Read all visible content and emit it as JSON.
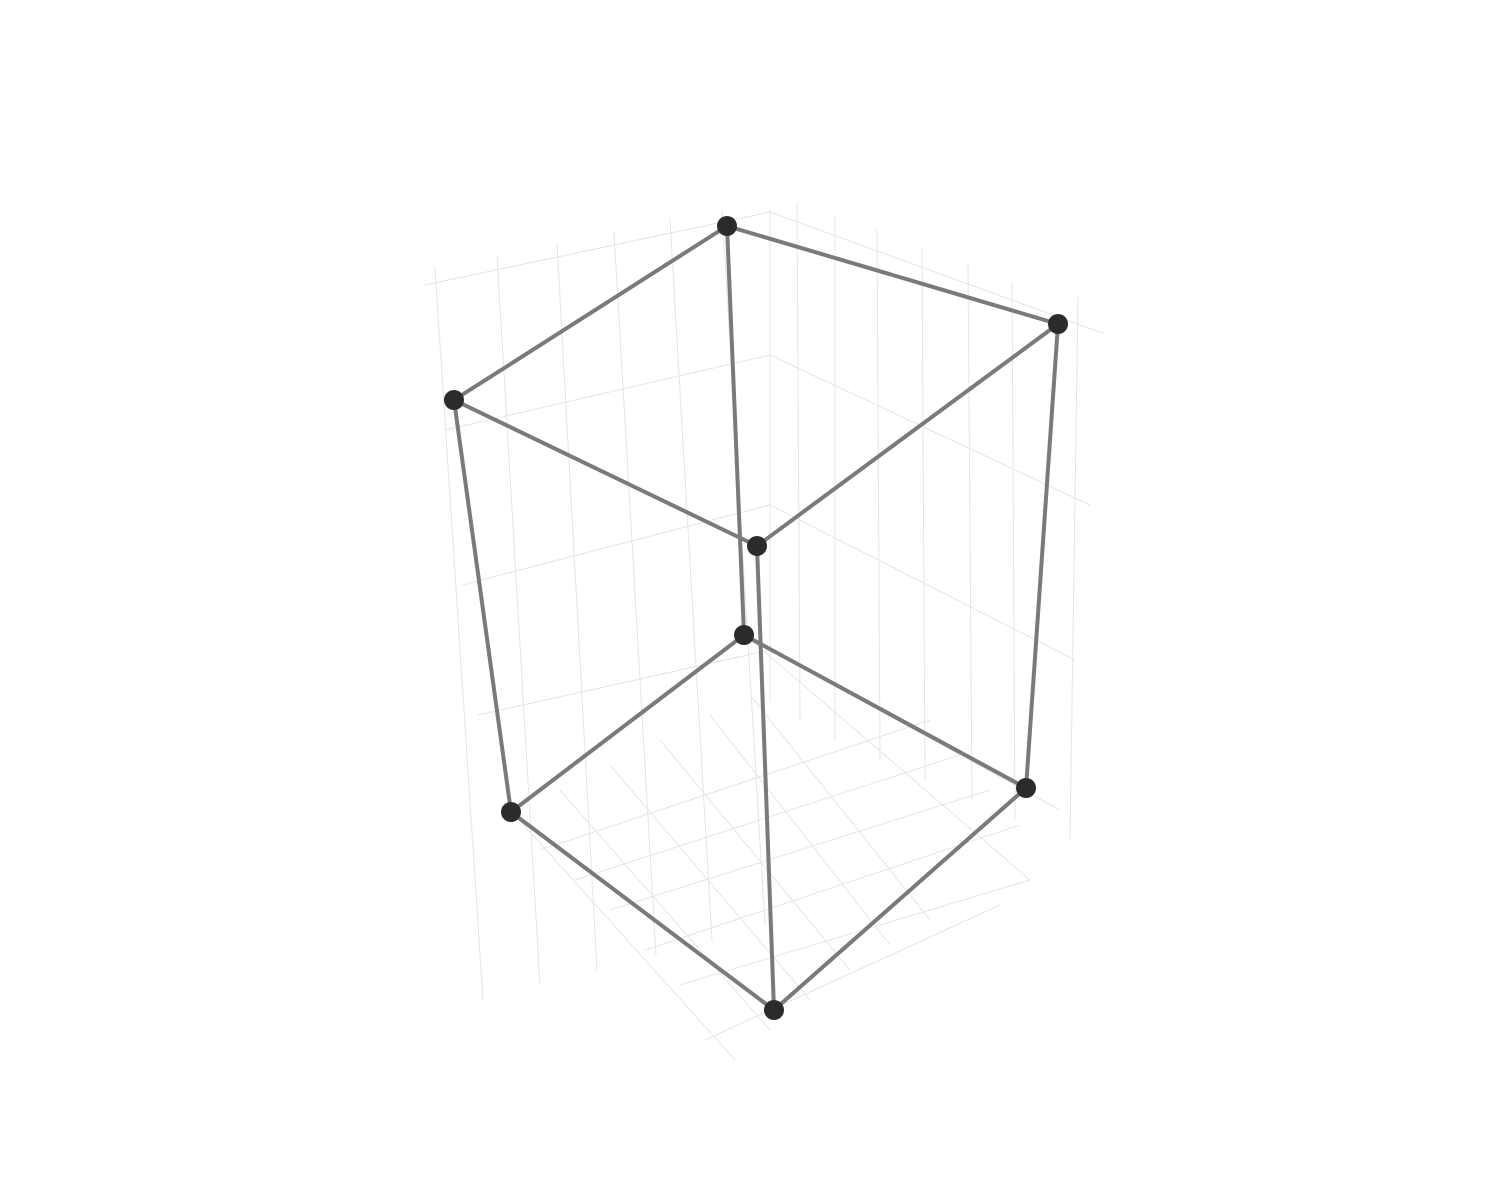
{
  "scene": {
    "type": "3d-wireframe",
    "shape": "rectangular box",
    "colors": {
      "background": "#ffffff",
      "grid": "#e3e5ee",
      "edge": "#7a7a7a",
      "vertex": "#2b2b2b"
    },
    "vertices": [
      {
        "id": "v1"
      },
      {
        "id": "v2"
      },
      {
        "id": "v3"
      },
      {
        "id": "v4"
      },
      {
        "id": "v5"
      },
      {
        "id": "v6"
      },
      {
        "id": "v7"
      },
      {
        "id": "v8"
      }
    ],
    "edges": [
      [
        "v1",
        "v2"
      ],
      [
        "v2",
        "v3"
      ],
      [
        "v3",
        "v4"
      ],
      [
        "v4",
        "v1"
      ],
      [
        "v5",
        "v6"
      ],
      [
        "v6",
        "v7"
      ],
      [
        "v7",
        "v8"
      ],
      [
        "v8",
        "v5"
      ],
      [
        "v1",
        "v5"
      ],
      [
        "v2",
        "v6"
      ],
      [
        "v3",
        "v7"
      ],
      [
        "v4",
        "v8"
      ]
    ],
    "grid_visible": true,
    "axis_labels_visible": false
  }
}
